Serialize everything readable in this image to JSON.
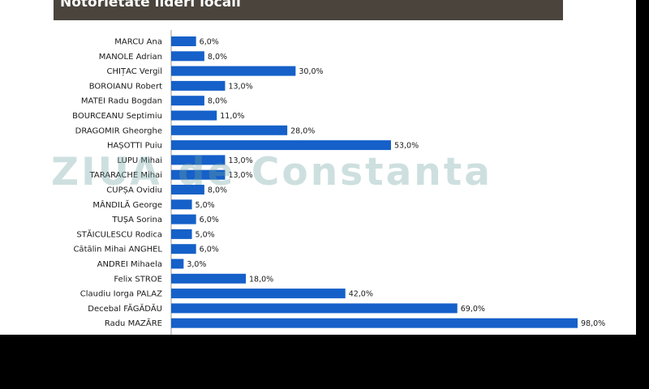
{
  "title": "Notorietate lideri locali",
  "watermark": "ZIUA de Constanta",
  "colors": {
    "bar": "#1560c9",
    "title_bg": "#4a443d",
    "page_bg": "#000000"
  },
  "chart_data": {
    "type": "bar",
    "orientation": "horizontal",
    "title": "Notorietate lideri locali",
    "unit": "%",
    "grid": false,
    "categories": [
      "MARCU Ana",
      "MANOLE Adrian",
      "CHIȚAC Vergil",
      "BOROIANU Robert",
      "MATEI Radu Bogdan",
      "BOURCEANU Septimiu",
      "DRAGOMIR Gheorghe",
      "HAȘOTTI Puiu",
      "LUPU Mihai",
      "TARARACHE Mihai",
      "CUPȘA Ovidiu",
      "MÂNDILĂ George",
      "TUȘA Sorina",
      "STĂICULESCU Rodica",
      "Cătălin Mihai ANGHEL",
      "ANDREI Mihaela",
      "Felix STROE",
      "Claudiu Iorga PALAZ",
      "Decebal FĂGĂDĂU",
      "Radu MAZĂRE"
    ],
    "values": [
      6,
      8,
      30,
      13,
      8,
      11,
      28,
      53,
      13,
      13,
      8,
      5,
      6,
      5,
      6,
      3,
      18,
      42,
      69,
      98
    ],
    "value_labels": [
      "6,0%",
      "8,0%",
      "30,0%",
      "13,0%",
      "8,0%",
      "11,0%",
      "28,0%",
      "53,0%",
      "13,0%",
      "13,0%",
      "8,0%",
      "5,0%",
      "6,0%",
      "5,0%",
      "6,0%",
      "3,0%",
      "18,0%",
      "42,0%",
      "69,0%",
      "98,0%"
    ],
    "xlim": [
      0,
      100
    ]
  }
}
